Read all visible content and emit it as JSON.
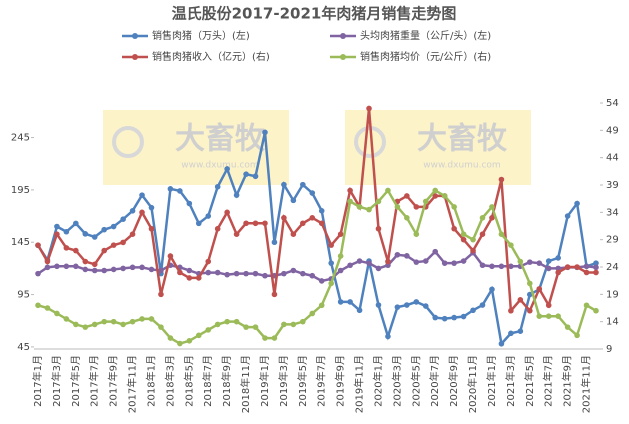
{
  "chart_data": {
    "type": "line",
    "title": "温氏股份2017-2021年肉猪月销售走势图",
    "watermark": {
      "brand": "大畜牧",
      "url": "www.dxumu.com"
    },
    "categories": [
      "2017年1月",
      null,
      "2017年3月",
      null,
      "2017年5月",
      null,
      "2017年7月",
      null,
      "2017年9月",
      null,
      "2017年11月",
      null,
      "2018年1月",
      null,
      "2018年3月",
      null,
      "2018年5月",
      null,
      "2018年7月",
      null,
      "2018年9月",
      null,
      "2018年11月",
      null,
      "2019年1月",
      null,
      "2019年3月",
      null,
      "2019年5月",
      null,
      "2019年7月",
      null,
      "2019年9月",
      null,
      "2019年11月",
      null,
      "2020年1月",
      null,
      "2020年3月",
      null,
      "2020年5月",
      null,
      "2020年7月",
      null,
      "2020年9月",
      null,
      "2020年11月",
      null,
      "2021年1月",
      null,
      "2021年3月",
      null,
      "2021年5月",
      null,
      "2021年7月",
      null,
      "2021年9月",
      null,
      "2021年11月",
      null
    ],
    "ylim": [
      43,
      278
    ],
    "yticks": [
      45,
      95,
      145,
      195,
      245
    ],
    "y2lim": [
      9,
      54
    ],
    "y2ticks": [
      9,
      14,
      19,
      24,
      29,
      34,
      39,
      44,
      49,
      54
    ],
    "series": [
      {
        "name": "销售肉猪（万头）(左)",
        "color": "#4e81bd",
        "values": [
          142,
          128,
          160,
          155,
          163,
          153,
          150,
          157,
          160,
          167,
          175,
          190,
          178,
          115,
          196,
          194,
          182,
          163,
          170,
          198,
          215,
          190,
          210,
          208,
          250,
          145,
          200,
          185,
          200,
          192,
          175,
          125,
          88,
          88,
          80,
          127,
          85,
          55,
          83,
          85,
          88,
          84,
          73,
          72,
          73,
          74,
          80,
          85,
          100,
          48,
          58,
          60,
          95,
          100,
          127,
          130,
          170,
          182,
          122,
          125
        ]
      },
      {
        "name": "头均肉猪重量（公斤/头）(左)",
        "color": "#8064a2",
        "values": [
          115,
          121,
          122,
          122,
          122,
          119,
          118,
          118,
          119,
          120,
          121,
          121,
          119,
          118,
          123,
          121,
          118,
          115,
          116,
          116,
          114,
          115,
          115,
          115,
          113,
          113,
          115,
          118,
          115,
          113,
          108,
          110,
          118,
          123,
          127,
          125,
          120,
          123,
          133,
          132,
          126,
          127,
          136,
          125,
          125,
          127,
          135,
          123,
          122,
          122,
          122,
          122,
          126,
          125,
          120,
          120,
          121,
          121,
          122,
          121
        ]
      },
      {
        "name": "销售肉猪收入（亿元）(右)",
        "color": "#c0504d",
        "axis": "y2",
        "values": [
          28,
          25,
          30,
          27.5,
          27,
          25,
          24.5,
          27,
          28,
          28.5,
          30,
          34,
          31,
          19,
          26,
          23,
          22,
          22,
          25,
          31,
          34,
          30,
          32,
          32,
          32,
          19,
          33,
          30,
          32,
          33,
          32,
          28,
          30,
          38,
          35,
          53,
          31,
          25,
          36,
          37,
          35,
          35,
          37,
          37,
          31,
          29,
          27,
          30,
          33,
          40,
          16,
          18,
          16,
          20,
          17,
          23,
          24,
          24,
          23,
          23
        ]
      },
      {
        "name": "销售肉猪均价（元/公斤）(右)",
        "color": "#9bbb59",
        "axis": "y2",
        "values": [
          17,
          16.5,
          15.5,
          14.5,
          13.5,
          13,
          13.5,
          14,
          14,
          13.5,
          14,
          14.5,
          14.5,
          13,
          11,
          10,
          10.5,
          11.5,
          12.5,
          13.5,
          14,
          14,
          13,
          13,
          11,
          11,
          13.5,
          13.5,
          14,
          15.5,
          17,
          21,
          26,
          36,
          35,
          34.5,
          36,
          38,
          35,
          33,
          30,
          36,
          38,
          37,
          35,
          30,
          29,
          33,
          35,
          30,
          28,
          25,
          21,
          15,
          15,
          15,
          13,
          11.5,
          17,
          16
        ]
      }
    ]
  }
}
